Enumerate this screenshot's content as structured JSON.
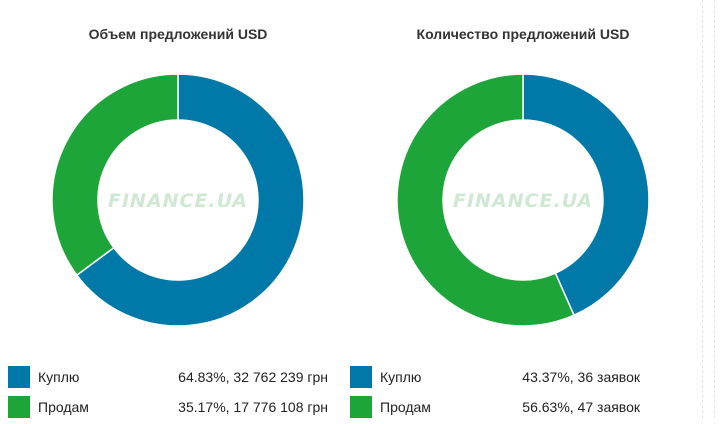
{
  "colors": {
    "buy": "#0078a8",
    "sell": "#1ea53a",
    "watermark": "#cfe8d3"
  },
  "watermark": "FINANCE.UA",
  "chart_data": [
    {
      "type": "pie",
      "title": "Объем предложений USD",
      "series": [
        {
          "name": "Куплю",
          "value": 64.83,
          "detail": "64.83%, 32 762 239 грн",
          "color_key": "buy"
        },
        {
          "name": "Продам",
          "value": 35.17,
          "detail": "35.17%, 17 776 108 грн",
          "color_key": "sell"
        }
      ]
    },
    {
      "type": "pie",
      "title": "Количество предложений USD",
      "series": [
        {
          "name": "Куплю",
          "value": 43.37,
          "detail": "43.37%, 36 заявок",
          "color_key": "buy"
        },
        {
          "name": "Продам",
          "value": 56.63,
          "detail": "56.63%, 47 заявок",
          "color_key": "sell"
        }
      ]
    }
  ]
}
